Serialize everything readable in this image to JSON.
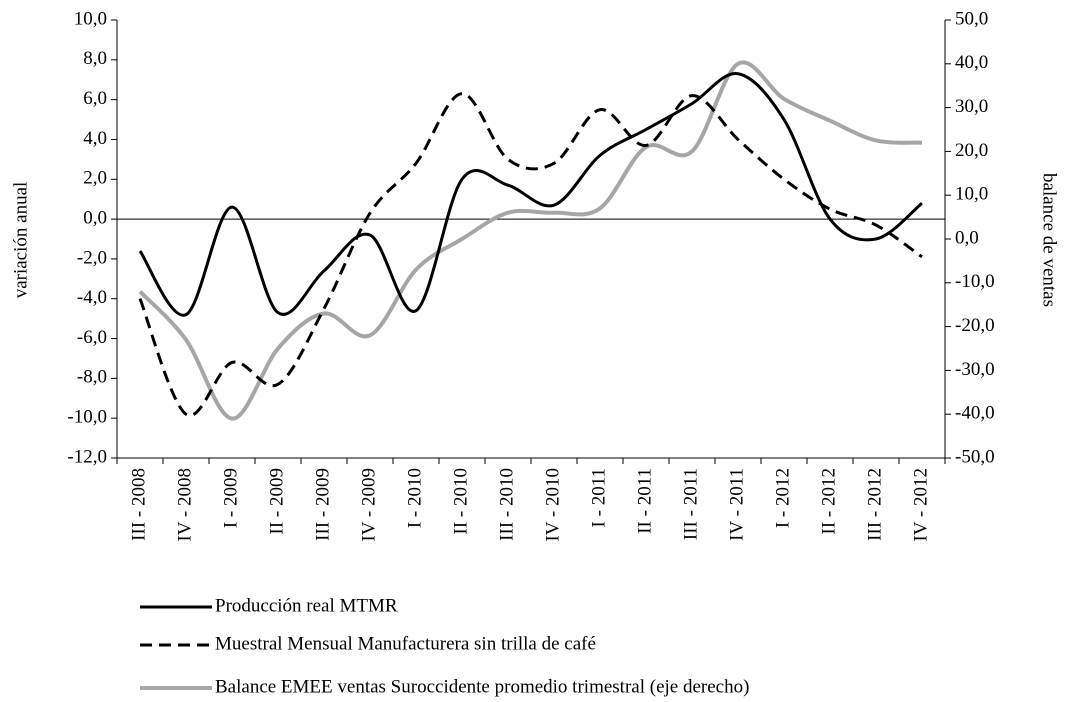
{
  "chart_data": {
    "type": "line",
    "y_label": "variación anual",
    "y2_label": "balance de ventas",
    "categories": [
      "III - 2008",
      "IV - 2008",
      "I - 2009",
      "II - 2009",
      "III - 2009",
      "IV - 2009",
      "I - 2010",
      "II - 2010",
      "III - 2010",
      "IV - 2010",
      "I - 2011",
      "II - 2011",
      "III - 2011",
      "IV - 2011",
      "I - 2012",
      "II - 2012",
      "III - 2012",
      "IV - 2012"
    ],
    "series": [
      {
        "name": "Producción real MTMR",
        "color": "#000000",
        "dash": false,
        "values": [
          -1.6,
          -4.8,
          0.6,
          -4.7,
          -2.6,
          -0.8,
          -4.6,
          2.0,
          1.7,
          0.7,
          3.2,
          4.5,
          5.8,
          7.3,
          5.0,
          0.0,
          -1.0,
          0.8
        ]
      },
      {
        "name": "Muestral Mensual Manufacturera sin trilla de café",
        "color": "#000000",
        "dash": true,
        "values": [
          -4.0,
          -9.8,
          -7.2,
          -8.3,
          -4.5,
          0.3,
          2.8,
          6.3,
          3.0,
          2.8,
          5.5,
          3.7,
          6.2,
          4.0,
          2.0,
          0.5,
          -0.3,
          -1.9
        ]
      },
      {
        "name": "Balance EMEE ventas Suroccidente promedio  trimestral (eje derecho)",
        "color": "#a6a6a6",
        "dash": false,
        "axis": "y2",
        "values": [
          -12,
          -23,
          -41,
          -25,
          -17,
          -22,
          -7,
          0,
          6,
          6,
          7,
          21,
          20,
          40,
          32,
          27,
          22.5,
          22
        ]
      }
    ],
    "ylim": [
      -12,
      10
    ],
    "yticks": [
      {
        "value": -12,
        "label": "-12,0"
      },
      {
        "value": -10,
        "label": "-10,0"
      },
      {
        "value": -8,
        "label": "-8,0"
      },
      {
        "value": -6,
        "label": "-6,0"
      },
      {
        "value": -4,
        "label": "-4,0"
      },
      {
        "value": -2,
        "label": "-2,0"
      },
      {
        "value": 0,
        "label": "0,0"
      },
      {
        "value": 2,
        "label": "2,0"
      },
      {
        "value": 4,
        "label": "4,0"
      },
      {
        "value": 6,
        "label": "6,0"
      },
      {
        "value": 8,
        "label": "8,0"
      },
      {
        "value": 10,
        "label": "10,0"
      }
    ],
    "y2lim": [
      -50,
      50
    ],
    "y2ticks": [
      {
        "value": -50,
        "label": "-50,0"
      },
      {
        "value": -40,
        "label": "-40,0"
      },
      {
        "value": -30,
        "label": "-30,0"
      },
      {
        "value": -20,
        "label": "-20,0"
      },
      {
        "value": -10,
        "label": "-10,0"
      },
      {
        "value": 0,
        "label": "0,0"
      },
      {
        "value": 10,
        "label": "10,0"
      },
      {
        "value": 20,
        "label": "20,0"
      },
      {
        "value": 30,
        "label": "30,0"
      },
      {
        "value": 40,
        "label": "40,0"
      },
      {
        "value": 50,
        "label": "50,0"
      }
    ],
    "grid": false,
    "legend": "bottom"
  }
}
